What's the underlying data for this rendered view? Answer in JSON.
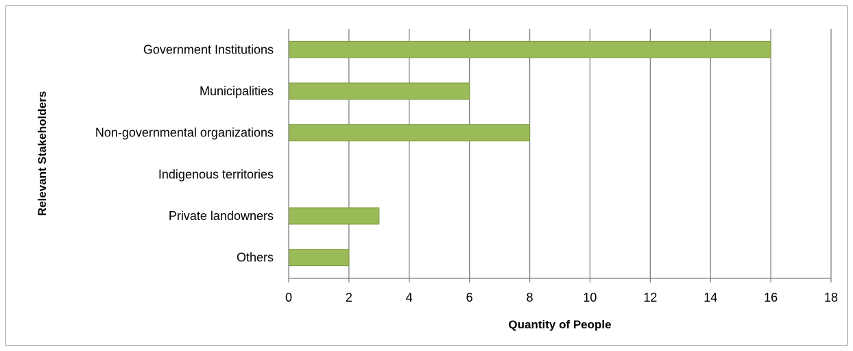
{
  "chart_data": {
    "type": "bar",
    "orientation": "horizontal",
    "categories": [
      "Government Institutions",
      "Municipalities",
      "Non-governmental organizations",
      "Indigenous territories",
      "Private landowners",
      "Others"
    ],
    "values": [
      16,
      6,
      8,
      0,
      3,
      2
    ],
    "xlabel": "Quantity of People",
    "ylabel": "Relevant Stakeholders",
    "xlim": [
      0,
      18
    ],
    "xticks": [
      "0",
      "2",
      "4",
      "6",
      "8",
      "10",
      "12",
      "14",
      "16",
      "18"
    ],
    "grid": "vertical",
    "legend": "none",
    "colors": {
      "bar": "#9bbb59",
      "bar_border": "#7a9a3e",
      "grid": "#7f7f7f",
      "axis": "#7f7f7f"
    }
  }
}
